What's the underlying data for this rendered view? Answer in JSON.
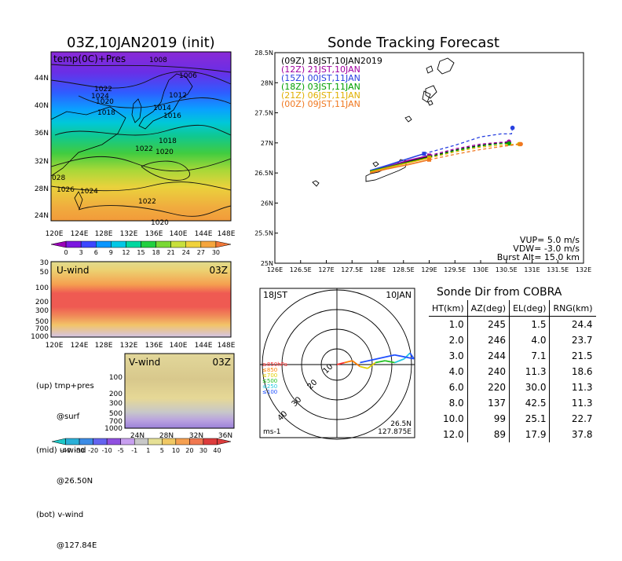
{
  "panels": {
    "map": {
      "title": "03Z,10JAN2019 (init)",
      "field_label": "temp(0C)+Pres",
      "x_ticks": [
        "120E",
        "124E",
        "128E",
        "132E",
        "136E",
        "140E",
        "144E",
        "148E"
      ],
      "y_ticks": [
        "44N",
        "40N",
        "36N",
        "32N",
        "28N",
        "24N"
      ],
      "isobar_labels": [
        "1008",
        "1006",
        "1022",
        "1024",
        "1020",
        "1018",
        "1012",
        "1014",
        "1016",
        "1018",
        "1022",
        "1020",
        "028",
        "1026",
        "1024",
        "1022",
        "1020"
      ],
      "colorbar": {
        "ticks": [
          "0",
          "3",
          "6",
          "9",
          "12",
          "15",
          "18",
          "21",
          "24",
          "27",
          "30"
        ],
        "colors": [
          "#9a00b8",
          "#7b18e0",
          "#3c46ff",
          "#0a96ff",
          "#00c8e6",
          "#00d8a0",
          "#22d040",
          "#7ad835",
          "#c8e03c",
          "#f0d23c",
          "#f5a53c",
          "#f27838"
        ]
      }
    },
    "uwind": {
      "label": "U-wind",
      "time": "03Z",
      "y_ticks": [
        "30",
        "50",
        "100",
        "200",
        "300",
        "500",
        "700",
        "1000"
      ],
      "x_ticks": [
        "120E",
        "124E",
        "128E",
        "132E",
        "136E",
        "140E",
        "144E",
        "148E"
      ]
    },
    "vwind": {
      "label": "V-wind",
      "time": "03Z",
      "y_ticks": [
        "100",
        "200",
        "300",
        "500",
        "700",
        "1000"
      ],
      "x_ticks": [
        "24N",
        "28N",
        "32N",
        "36N"
      ],
      "colorbar": {
        "ticks": [
          "-40",
          "-30",
          "-20",
          "-10",
          "-5",
          "-1",
          "1",
          "5",
          "10",
          "20",
          "30",
          "40"
        ],
        "colors": [
          "#1ec8c8",
          "#2ab0d8",
          "#3c8ce6",
          "#6464f0",
          "#9050e0",
          "#c8a0f0",
          "#c8c8c8",
          "#e6e096",
          "#f0c864",
          "#f5a050",
          "#f07850",
          "#dc3c3c"
        ]
      }
    },
    "notes": {
      "up": "(up) tmp+pres",
      "up2": "@surf",
      "mid": "(mid) u-wind",
      "mid2": "@26.50N",
      "bot": "(bot) v-wind",
      "bot2": "@127.84E"
    }
  },
  "chart_data": [
    {
      "type": "line",
      "title": "Sonde Tracking Forecast",
      "xlabel": "",
      "ylabel": "",
      "x_ticks": [
        "126E",
        "126.5E",
        "127E",
        "127.5E",
        "128E",
        "128.5E",
        "129E",
        "129.5E",
        "130E",
        "130.5E",
        "131E",
        "131.5E",
        "132E"
      ],
      "y_ticks": [
        "25N",
        "25.5N",
        "26N",
        "26.5N",
        "27N",
        "27.5N",
        "28N",
        "28.5N"
      ],
      "xlim": [
        126,
        132
      ],
      "ylim": [
        25,
        28.5
      ],
      "legend_position": "top-left",
      "series": [
        {
          "name": "(09Z)  18JST,10JAN2019",
          "color": "#000000",
          "x": [
            127.85,
            128.2,
            128.6,
            129.0,
            129.5,
            130.0,
            130.4,
            130.55
          ],
          "y": [
            26.52,
            26.6,
            26.7,
            26.77,
            26.88,
            26.96,
            27.0,
            27.0
          ]
        },
        {
          "name": "(12Z)  21JST,10JAN",
          "color": "#a000a0",
          "x": [
            127.85,
            128.2,
            128.6,
            129.0,
            129.5,
            130.0,
            130.4,
            130.55
          ],
          "y": [
            26.53,
            26.61,
            26.71,
            26.79,
            26.9,
            26.98,
            27.01,
            27.02
          ]
        },
        {
          "name": "(15Z)  00JST,11JAN",
          "color": "#2840e0",
          "x": [
            127.85,
            128.2,
            128.6,
            128.9,
            129.5,
            130.0,
            130.4,
            130.6,
            130.62
          ],
          "y": [
            26.54,
            26.63,
            26.74,
            26.82,
            26.96,
            27.1,
            27.15,
            27.15,
            27.25
          ]
        },
        {
          "name": "(18Z)  03JST,11JAN",
          "color": "#00a000",
          "x": [
            127.85,
            128.2,
            128.6,
            129.0,
            129.5,
            130.0,
            130.4,
            130.55
          ],
          "y": [
            26.53,
            26.6,
            26.68,
            26.76,
            26.87,
            26.95,
            26.99,
            26.99
          ]
        },
        {
          "name": "(21Z)  06JST,11JAN",
          "color": "#e0b000",
          "x": [
            127.85,
            128.2,
            128.6,
            129.0,
            129.5,
            130.0,
            130.5,
            130.75
          ],
          "y": [
            26.52,
            26.59,
            26.67,
            26.75,
            26.85,
            26.93,
            26.97,
            26.98
          ]
        },
        {
          "name": "(00Z)  09JST,11JAN",
          "color": "#f07820",
          "x": [
            127.85,
            128.2,
            128.6,
            129.0,
            129.5,
            130.0,
            130.5,
            130.78
          ],
          "y": [
            26.5,
            26.57,
            26.64,
            26.72,
            26.81,
            26.89,
            26.95,
            26.98
          ]
        }
      ],
      "annotations": [
        "VUP=  5.0 m/s",
        "VDW=  -3.0 m/s",
        "Burst Alt=  15.0 km"
      ]
    },
    {
      "type": "line",
      "title": "",
      "time": "18JST",
      "date": "10JAN",
      "range_ring_labels": [
        "10",
        "20",
        "30",
        "40"
      ],
      "legend": [
        {
          "label": "≥850hPa",
          "color": "#ff3030"
        },
        {
          "label": "≤850",
          "color": "#ff7f00"
        },
        {
          "label": "≤700",
          "color": "#e0d000"
        },
        {
          "label": "≤500",
          "color": "#20c020"
        },
        {
          "label": "≤250",
          "color": "#20c8e0"
        },
        {
          "label": "≤100",
          "color": "#2050ff"
        }
      ],
      "unit": "ms-1",
      "location_lat": "26.5N",
      "location_lon": "127.875E",
      "hodograph_uv": [
        {
          "u": 0,
          "v": 0,
          "color": "#ff3030"
        },
        {
          "u": 4,
          "v": 1,
          "color": "#ff3030"
        },
        {
          "u": 8,
          "v": 2,
          "color": "#ff7f00"
        },
        {
          "u": 12,
          "v": -1,
          "color": "#ff7f00"
        },
        {
          "u": 16,
          "v": -2,
          "color": "#e0d000"
        },
        {
          "u": 20,
          "v": 1,
          "color": "#e0d000"
        },
        {
          "u": 25,
          "v": 2,
          "color": "#20c020"
        },
        {
          "u": 30,
          "v": 1,
          "color": "#20c020"
        },
        {
          "u": 35,
          "v": 3,
          "color": "#20c8e0"
        },
        {
          "u": 38,
          "v": 6,
          "color": "#20c8e0"
        },
        {
          "u": 40,
          "v": 3,
          "color": "#2050ff"
        },
        {
          "u": 30,
          "v": 5,
          "color": "#2050ff"
        },
        {
          "u": 12,
          "v": 1,
          "color": "#2050ff"
        }
      ]
    },
    {
      "type": "table",
      "title": "Sonde Dir from COBRA",
      "columns": [
        "HT(km)",
        "AZ(deg)",
        "EL(deg)",
        "RNG(km)"
      ],
      "rows": [
        [
          "1.0",
          "245",
          "1.5",
          "24.4"
        ],
        [
          "2.0",
          "246",
          "4.0",
          "23.7"
        ],
        [
          "3.0",
          "244",
          "7.1",
          "21.5"
        ],
        [
          "4.0",
          "240",
          "11.3",
          "18.6"
        ],
        [
          "6.0",
          "220",
          "30.0",
          "11.3"
        ],
        [
          "8.0",
          "137",
          "42.5",
          "11.3"
        ],
        [
          "10.0",
          "99",
          "25.1",
          "22.7"
        ],
        [
          "12.0",
          "89",
          "17.9",
          "37.8"
        ]
      ]
    }
  ]
}
